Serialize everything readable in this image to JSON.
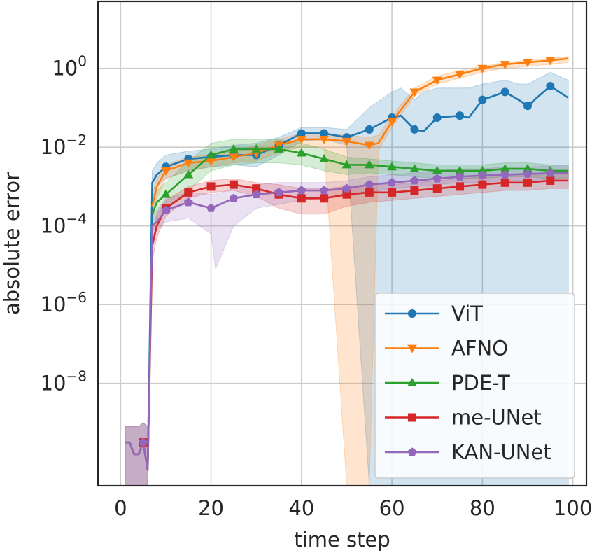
{
  "chart_data": {
    "type": "line",
    "xlabel": "time step",
    "ylabel": "absolute error",
    "yscale": "log",
    "xlim": [
      -5,
      103
    ],
    "ylim_exp": [
      -10.6,
      1.7
    ],
    "grid": true,
    "legend_position": "lower-right",
    "xticks": [
      0,
      20,
      40,
      60,
      80,
      100
    ],
    "xtick_labels": [
      "0",
      "20",
      "40",
      "60",
      "80",
      "100"
    ],
    "yticks_exp": [
      0,
      -2,
      -4,
      -6,
      -8
    ],
    "ytick_labels": [
      {
        "base": "10",
        "exp": "0"
      },
      {
        "base": "10",
        "exp": "−2"
      },
      {
        "base": "10",
        "exp": "−4"
      },
      {
        "base": "10",
        "exp": "−6"
      },
      {
        "base": "10",
        "exp": "−8"
      }
    ],
    "series": [
      {
        "name": "ViT",
        "color": "#1f77b4",
        "marker": "circle",
        "x": [
          1,
          2,
          3,
          4,
          5,
          6,
          7,
          8,
          10,
          15,
          20,
          25,
          30,
          35,
          40,
          45,
          50,
          55,
          60,
          62,
          65,
          67,
          70,
          75,
          77,
          80,
          85,
          88,
          90,
          95,
          99
        ],
        "y_exp": [
          -9.5,
          -9.5,
          -9.8,
          -9.8,
          -9.5,
          -10.2,
          -2.9,
          -2.7,
          -2.5,
          -2.3,
          -2.25,
          -2.2,
          -2.2,
          -1.95,
          -1.65,
          -1.65,
          -1.75,
          -1.55,
          -1.25,
          -1.2,
          -1.55,
          -1.6,
          -1.25,
          -1.2,
          -1.25,
          -0.8,
          -0.6,
          -0.8,
          -0.95,
          -0.45,
          -0.75
        ],
        "band_upper_exp": [
          -9.1,
          -9.1,
          -9.1,
          -9.1,
          -9.0,
          -9.1,
          -2.6,
          -2.4,
          -2.2,
          -2.1,
          -2.05,
          -1.95,
          -1.9,
          -1.75,
          -1.5,
          -1.5,
          -1.55,
          -1.0,
          -0.6,
          -0.5,
          -0.8,
          -0.6,
          -0.5,
          -0.5,
          -0.5,
          -0.4,
          -0.3,
          -0.4,
          -0.4,
          -0.1,
          -0.3
        ],
        "band_lower_exp": [
          -10.6,
          -10.6,
          -10.6,
          -10.6,
          -10.6,
          -10.6,
          -3.3,
          -3.0,
          -2.8,
          -2.6,
          -2.5,
          -2.45,
          -2.5,
          -2.2,
          -1.85,
          -1.8,
          -1.95,
          -10.6,
          -10.6,
          -10.6,
          -10.6,
          -10.6,
          -10.6,
          -10.6,
          -10.6,
          -10.6,
          -10.6,
          -10.6,
          -10.6,
          -10.6,
          -10.6
        ],
        "marker_x": [
          10,
          15,
          20,
          25,
          30,
          35,
          40,
          45,
          50,
          55,
          60,
          65,
          70,
          75,
          80,
          85,
          90,
          95
        ],
        "marker_y_exp": [
          -2.5,
          -2.3,
          -2.25,
          -2.2,
          -2.2,
          -1.95,
          -1.65,
          -1.65,
          -1.75,
          -1.55,
          -1.25,
          -1.55,
          -1.25,
          -1.2,
          -0.8,
          -0.6,
          -0.95,
          -0.45
        ]
      },
      {
        "name": "AFNO",
        "color": "#ff7f0e",
        "marker": "triangle-down",
        "x": [
          7,
          8,
          10,
          15,
          20,
          25,
          30,
          35,
          40,
          45,
          50,
          55,
          57,
          60,
          65,
          70,
          75,
          80,
          85,
          90,
          95,
          99
        ],
        "y_exp": [
          -3.5,
          -3.0,
          -2.6,
          -2.4,
          -2.35,
          -2.25,
          -2.15,
          -1.95,
          -1.8,
          -1.8,
          -1.85,
          -1.95,
          -1.9,
          -1.35,
          -0.6,
          -0.3,
          -0.15,
          0.0,
          0.1,
          0.15,
          0.2,
          0.25
        ],
        "band_upper_exp": [
          -3.2,
          -2.8,
          -2.45,
          -2.25,
          -2.2,
          -2.1,
          -1.95,
          -1.8,
          -1.65,
          -1.65,
          -1.7,
          -1.75,
          -1.7,
          -1.2,
          -0.5,
          -0.2,
          -0.05,
          0.05,
          0.15,
          0.2,
          0.25,
          0.3
        ],
        "band_lower_exp": [
          -3.9,
          -3.3,
          -2.8,
          -2.6,
          -2.5,
          -2.4,
          -2.35,
          -2.15,
          -2.0,
          -2.0,
          -10.6,
          -10.6,
          -2.1,
          -1.5,
          -0.7,
          -0.4,
          -0.25,
          -0.1,
          0.0,
          0.05,
          0.1,
          0.15
        ],
        "marker_x": [
          10,
          15,
          20,
          25,
          30,
          35,
          40,
          45,
          50,
          55,
          60,
          65,
          70,
          75,
          80,
          85,
          90,
          95
        ],
        "marker_y_exp": [
          -2.6,
          -2.4,
          -2.35,
          -2.25,
          -2.15,
          -1.95,
          -1.8,
          -1.8,
          -1.85,
          -1.95,
          -1.35,
          -0.6,
          -0.3,
          -0.15,
          0.0,
          0.1,
          0.15,
          0.2
        ]
      },
      {
        "name": "PDE-T",
        "color": "#2ca02c",
        "marker": "triangle-up",
        "x": [
          7,
          8,
          10,
          15,
          20,
          25,
          30,
          35,
          40,
          45,
          50,
          55,
          60,
          65,
          70,
          75,
          80,
          85,
          90,
          95,
          99
        ],
        "y_exp": [
          -3.7,
          -3.4,
          -3.2,
          -2.7,
          -2.2,
          -2.05,
          -2.05,
          -2.05,
          -2.15,
          -2.3,
          -2.45,
          -2.45,
          -2.5,
          -2.55,
          -2.6,
          -2.6,
          -2.6,
          -2.55,
          -2.55,
          -2.6,
          -2.6
        ],
        "band_upper_exp": [
          -3.4,
          -3.1,
          -2.9,
          -2.35,
          -1.9,
          -1.8,
          -1.8,
          -1.8,
          -1.9,
          -2.05,
          -2.25,
          -2.3,
          -2.35,
          -2.4,
          -2.45,
          -2.45,
          -2.45,
          -2.4,
          -2.4,
          -2.45,
          -2.45
        ],
        "band_lower_exp": [
          -4.1,
          -3.8,
          -3.6,
          -3.1,
          -2.6,
          -2.45,
          -2.4,
          -2.4,
          -2.45,
          -2.6,
          -2.7,
          -2.65,
          -2.7,
          -2.75,
          -2.8,
          -2.8,
          -2.8,
          -2.75,
          -2.75,
          -2.8,
          -2.8
        ],
        "marker_x": [
          10,
          15,
          20,
          25,
          30,
          35,
          40,
          45,
          50,
          55,
          60,
          65,
          70,
          75,
          80,
          85,
          90,
          95
        ],
        "marker_y_exp": [
          -3.2,
          -2.7,
          -2.2,
          -2.05,
          -2.05,
          -2.05,
          -2.15,
          -2.3,
          -2.45,
          -2.45,
          -2.5,
          -2.55,
          -2.6,
          -2.6,
          -2.6,
          -2.55,
          -2.55,
          -2.6
        ]
      },
      {
        "name": "me-UNet",
        "color": "#d62728",
        "marker": "square",
        "x": [
          1,
          2,
          3,
          4,
          5,
          6,
          7,
          8,
          10,
          15,
          20,
          25,
          30,
          35,
          40,
          45,
          50,
          55,
          60,
          65,
          70,
          75,
          80,
          85,
          90,
          95,
          99
        ],
        "y_exp": [
          -9.5,
          -9.5,
          -9.8,
          -9.8,
          -9.5,
          -10.2,
          -4.5,
          -4.0,
          -3.55,
          -3.15,
          -3.0,
          -2.95,
          -3.05,
          -3.2,
          -3.3,
          -3.3,
          -3.2,
          -3.15,
          -3.15,
          -3.1,
          -3.05,
          -3.0,
          -2.95,
          -2.9,
          -2.9,
          -2.85,
          -2.85
        ],
        "band_upper_exp": [
          -9.1,
          -9.1,
          -9.1,
          -9.1,
          -9.0,
          -9.1,
          -4.2,
          -3.7,
          -3.35,
          -3.0,
          -2.85,
          -2.8,
          -2.9,
          -2.95,
          -3.05,
          -3.05,
          -3.0,
          -2.95,
          -2.95,
          -2.9,
          -2.85,
          -2.8,
          -2.75,
          -2.7,
          -2.7,
          -2.65,
          -2.65
        ],
        "band_lower_exp": [
          -10.6,
          -10.6,
          -10.6,
          -10.6,
          -10.6,
          -10.6,
          -4.9,
          -4.3,
          -3.75,
          -3.3,
          -3.15,
          -3.1,
          -3.25,
          -3.55,
          -3.7,
          -3.7,
          -3.5,
          -3.4,
          -3.35,
          -3.3,
          -3.25,
          -3.2,
          -3.15,
          -3.1,
          -3.1,
          -3.05,
          -3.05
        ],
        "marker_x": [
          5,
          10,
          15,
          20,
          25,
          30,
          35,
          40,
          45,
          50,
          55,
          60,
          65,
          70,
          75,
          80,
          85,
          90,
          95
        ],
        "marker_y_exp": [
          -9.5,
          -3.55,
          -3.15,
          -3.0,
          -2.95,
          -3.05,
          -3.2,
          -3.3,
          -3.3,
          -3.2,
          -3.15,
          -3.15,
          -3.1,
          -3.05,
          -3.0,
          -2.95,
          -2.9,
          -2.9,
          -2.85
        ]
      },
      {
        "name": "KAN-UNet",
        "color": "#9467bd",
        "marker": "pentagon",
        "x": [
          1,
          2,
          3,
          4,
          5,
          6,
          7,
          8,
          10,
          15,
          20,
          21,
          25,
          30,
          35,
          40,
          45,
          50,
          55,
          60,
          65,
          70,
          75,
          80,
          85,
          90,
          95,
          99
        ],
        "y_exp": [
          -9.5,
          -9.5,
          -9.8,
          -9.8,
          -9.5,
          -10.2,
          -4.0,
          -3.9,
          -3.6,
          -3.4,
          -3.55,
          -3.5,
          -3.3,
          -3.2,
          -3.15,
          -3.1,
          -3.1,
          -3.05,
          -2.95,
          -2.9,
          -2.85,
          -2.8,
          -2.75,
          -2.72,
          -2.7,
          -2.68,
          -2.66,
          -2.65
        ],
        "band_upper_exp": [
          -9.1,
          -9.1,
          -9.1,
          -9.1,
          -9.0,
          -9.1,
          -3.7,
          -3.6,
          -3.3,
          -3.15,
          -3.2,
          -3.2,
          -3.05,
          -2.95,
          -2.9,
          -2.9,
          -2.9,
          -2.85,
          -2.75,
          -2.7,
          -2.65,
          -2.6,
          -2.55,
          -2.55,
          -2.5,
          -2.5,
          -2.48,
          -2.45
        ],
        "band_lower_exp": [
          -10.6,
          -10.6,
          -10.6,
          -10.6,
          -10.6,
          -10.6,
          -4.3,
          -4.1,
          -3.9,
          -3.8,
          -4.2,
          -5.1,
          -4.0,
          -3.55,
          -3.45,
          -3.35,
          -3.3,
          -3.25,
          -3.15,
          -3.05,
          -3.0,
          -2.95,
          -2.9,
          -2.9,
          -2.85,
          -2.85,
          -2.82,
          -2.8
        ],
        "marker_x": [
          5,
          10,
          15,
          20,
          25,
          30,
          35,
          40,
          45,
          50,
          55,
          60,
          65,
          70,
          75,
          80,
          85,
          90,
          95
        ],
        "marker_y_exp": [
          -9.5,
          -3.6,
          -3.4,
          -3.55,
          -3.3,
          -3.2,
          -3.15,
          -3.1,
          -3.1,
          -3.05,
          -2.95,
          -2.9,
          -2.85,
          -2.8,
          -2.75,
          -2.72,
          -2.7,
          -2.68,
          -2.66
        ]
      }
    ]
  }
}
